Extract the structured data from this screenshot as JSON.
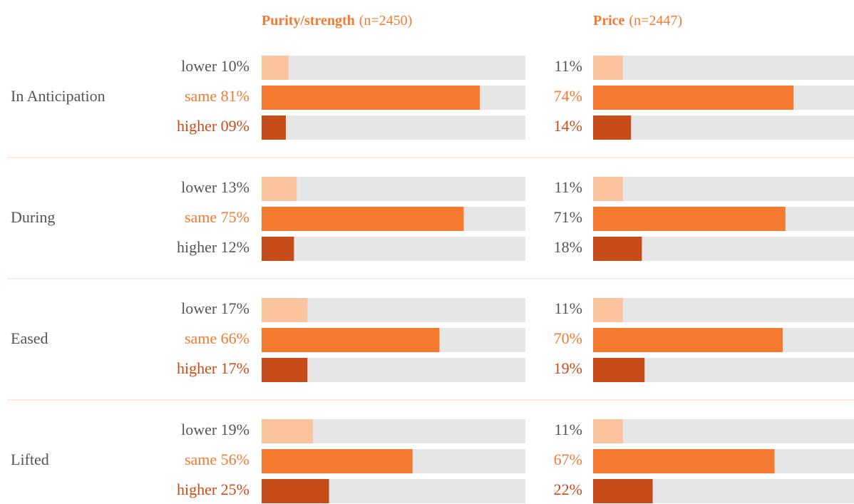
{
  "chart_data": {
    "type": "bar",
    "orientation": "horizontal",
    "xlim": [
      0,
      100
    ],
    "track_color": "#e6e6e6",
    "separator_color": "#fbd5b8",
    "title_color": "#f47a30",
    "periods": [
      "In Anticipation",
      "During",
      "Eased",
      "Lifted"
    ],
    "series": [
      {
        "name": "lower",
        "color": "#fbc39e"
      },
      {
        "name": "same",
        "color": "#f47a30"
      },
      {
        "name": "higher",
        "color": "#c64c1a"
      }
    ],
    "panels": [
      {
        "title": "Purity/strength",
        "note": "(n=2450)",
        "show_names": true,
        "values": [
          [
            10,
            81,
            9
          ],
          [
            13,
            75,
            12
          ],
          [
            17,
            66,
            17
          ],
          [
            19,
            56,
            25
          ]
        ],
        "value_labels": [
          [
            "10%",
            "81%",
            "09%"
          ],
          [
            "13%",
            "75%",
            "12%"
          ],
          [
            "17%",
            "66%",
            "17%"
          ],
          [
            "19%",
            "56%",
            "25%"
          ]
        ],
        "label_colors": [
          [
            "#555555",
            "#f47a30",
            "#c64c1a"
          ],
          [
            "#555555",
            "#f47a30",
            "#555555"
          ],
          [
            "#555555",
            "#f47a30",
            "#c64c1a"
          ],
          [
            "#555555",
            "#f47a30",
            "#c64c1a"
          ]
        ]
      },
      {
        "title": "Price",
        "note": "(n=2447)",
        "show_names": false,
        "values": [
          [
            11,
            74,
            14
          ],
          [
            11,
            71,
            18
          ],
          [
            11,
            70,
            19
          ],
          [
            11,
            67,
            22
          ]
        ],
        "value_labels": [
          [
            "11%",
            "74%",
            "14%"
          ],
          [
            "11%",
            "71%",
            "18%"
          ],
          [
            "11%",
            "70%",
            "19%"
          ],
          [
            "11%",
            "67%",
            "22%"
          ]
        ],
        "label_colors": [
          [
            "#555555",
            "#f47a30",
            "#c64c1a"
          ],
          [
            "#555555",
            "#555555",
            "#555555"
          ],
          [
            "#555555",
            "#f47a30",
            "#c64c1a"
          ],
          [
            "#555555",
            "#f47a30",
            "#c64c1a"
          ]
        ]
      }
    ]
  }
}
